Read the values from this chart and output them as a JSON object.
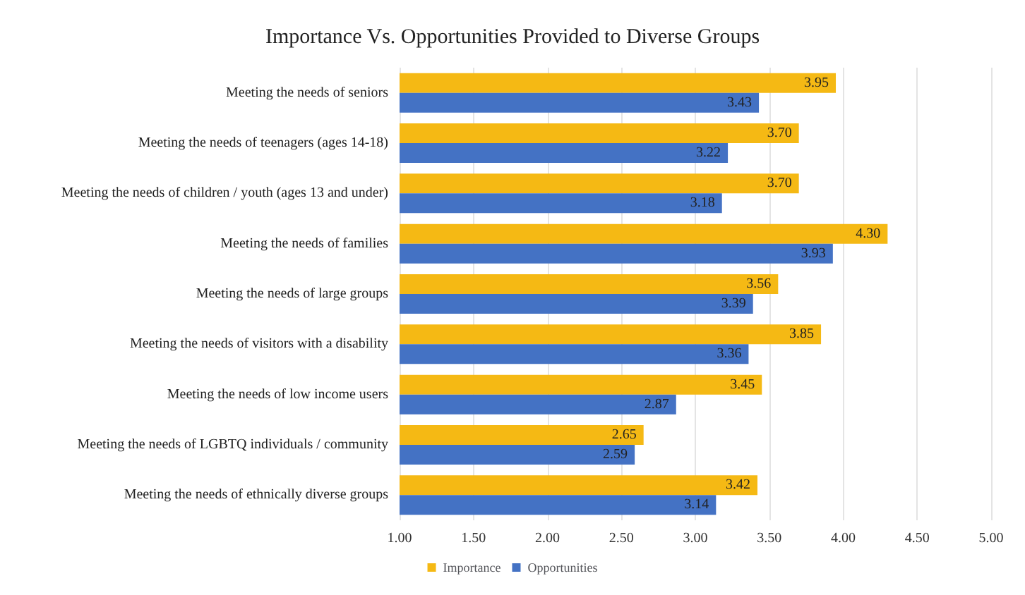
{
  "chart_data": {
    "type": "bar",
    "orientation": "horizontal",
    "title": "Importance Vs. Opportunities Provided to Diverse Groups",
    "categories": [
      "Meeting the needs of seniors",
      "Meeting the needs of teenagers (ages 14-18)",
      "Meeting the needs of children / youth (ages 13 and under)",
      "Meeting the needs of families",
      "Meeting the needs of large groups",
      "Meeting the needs of visitors with a disability",
      "Meeting the needs of low income users",
      "Meeting the needs of LGBTQ individuals / community",
      "Meeting the needs of ethnically diverse groups"
    ],
    "series": [
      {
        "name": "Importance",
        "color": "#f5b914",
        "values": [
          3.95,
          3.7,
          3.7,
          4.3,
          3.56,
          3.85,
          3.45,
          2.65,
          3.42
        ],
        "value_labels": [
          "3.95",
          "3.70",
          "3.70",
          "4.30",
          "3.56",
          "3.85",
          "3.45",
          "2.65",
          "3.42"
        ]
      },
      {
        "name": "Opportunities",
        "color": "#4472c4",
        "values": [
          3.43,
          3.22,
          3.18,
          3.93,
          3.39,
          3.36,
          2.87,
          2.59,
          3.14
        ],
        "value_labels": [
          "3.43",
          "3.22",
          "3.18",
          "3.93",
          "3.39",
          "3.36",
          "2.87",
          "2.59",
          "3.14"
        ]
      }
    ],
    "xlim": [
      1,
      5
    ],
    "xticks": [
      {
        "value": 1,
        "label": "1.00"
      },
      {
        "value": 1.5,
        "label": "1.50"
      },
      {
        "value": 2,
        "label": "2.00"
      },
      {
        "value": 2.5,
        "label": "2.50"
      },
      {
        "value": 3,
        "label": "3.00"
      },
      {
        "value": 3.5,
        "label": "3.50"
      },
      {
        "value": 4,
        "label": "4.00"
      },
      {
        "value": 4.5,
        "label": "4.50"
      },
      {
        "value": 5,
        "label": "5.00"
      }
    ],
    "grid": "x",
    "legend": "bottom"
  }
}
